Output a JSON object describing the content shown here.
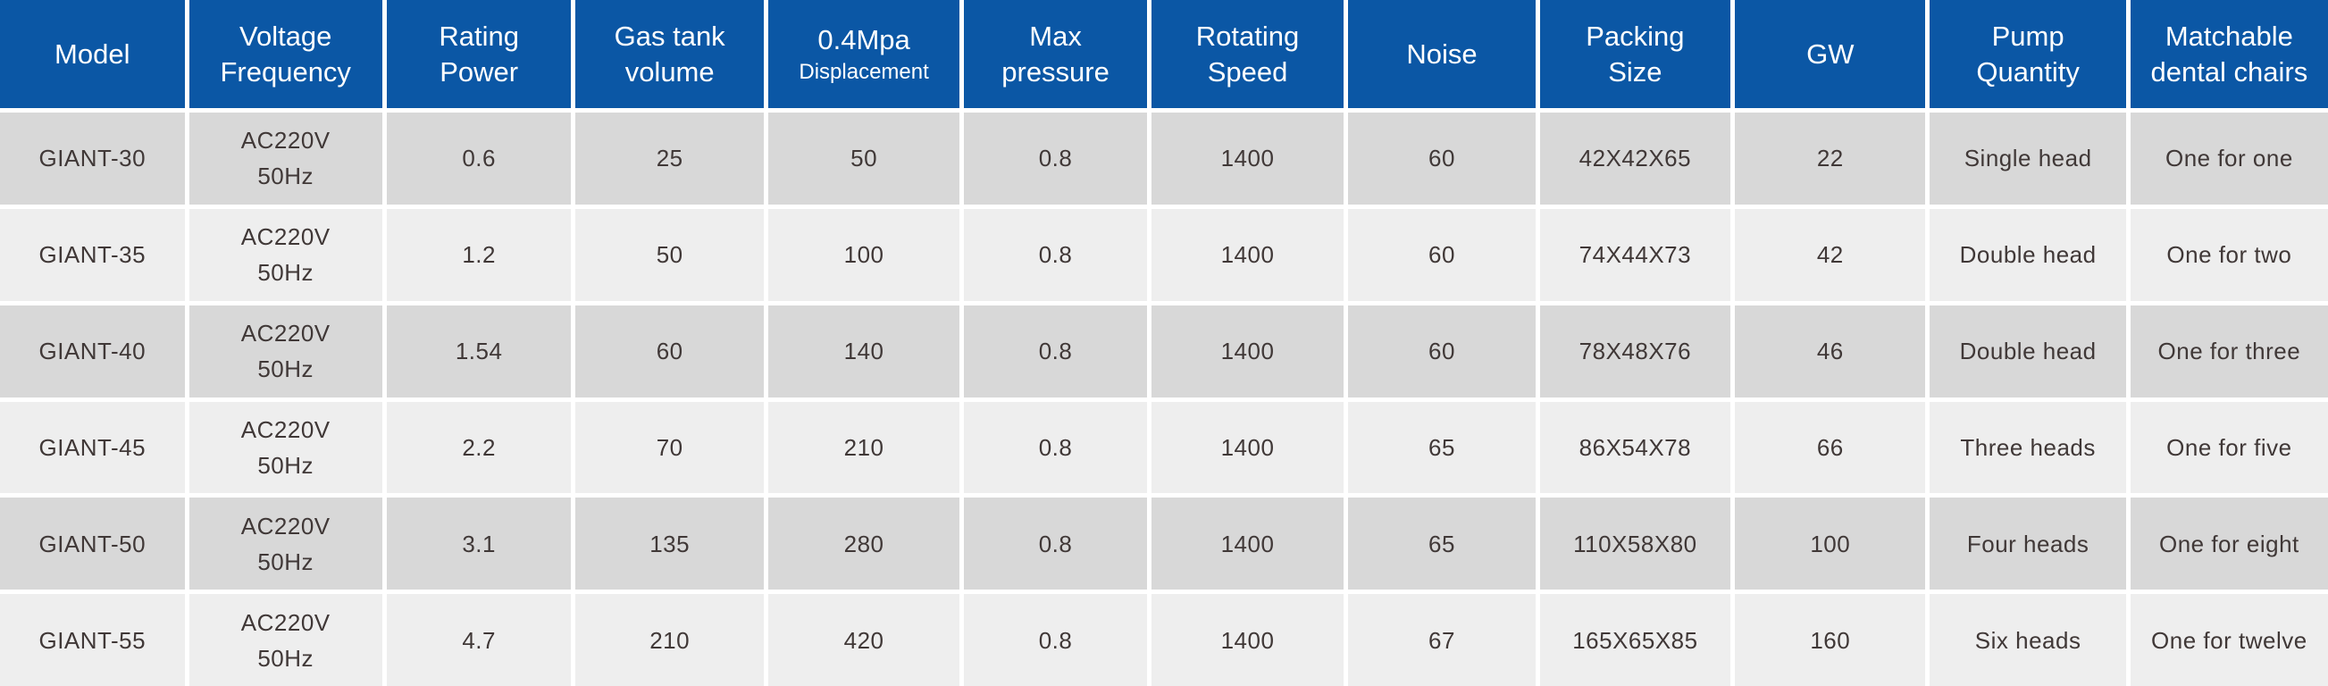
{
  "table": {
    "columns": [
      {
        "id": "model",
        "label": "Model"
      },
      {
        "id": "voltage-frequency",
        "label": "Voltage\nFrequency"
      },
      {
        "id": "rating-power",
        "label": "Rating\nPower"
      },
      {
        "id": "gas-tank-volume",
        "label": "Gas tank\nvolume"
      },
      {
        "id": "displacement",
        "label": "0.4Mpa",
        "sublabel": "Displacement"
      },
      {
        "id": "max-pressure",
        "label": "Max\npressure"
      },
      {
        "id": "rotating-speed",
        "label": "Rotating\nSpeed"
      },
      {
        "id": "noise",
        "label": "Noise"
      },
      {
        "id": "packing-size",
        "label": "Packing\nSize"
      },
      {
        "id": "gw",
        "label": "GW"
      },
      {
        "id": "pump-quantity",
        "label": "Pump\nQuantity"
      },
      {
        "id": "matchable-dental-chairs",
        "label": "Matchable\ndental chairs"
      }
    ],
    "rows": [
      [
        "GIANT-30",
        "AC220V\n50Hz",
        "0.6",
        "25",
        "50",
        "0.8",
        "1400",
        "60",
        "42X42X65",
        "22",
        "Single head",
        "One for one"
      ],
      [
        "GIANT-35",
        "AC220V\n50Hz",
        "1.2",
        "50",
        "100",
        "0.8",
        "1400",
        "60",
        "74X44X73",
        "42",
        "Double head",
        "One for two"
      ],
      [
        "GIANT-40",
        "AC220V\n50Hz",
        "1.54",
        "60",
        "140",
        "0.8",
        "1400",
        "60",
        "78X48X76",
        "46",
        "Double head",
        "One for three"
      ],
      [
        "GIANT-45",
        "AC220V\n50Hz",
        "2.2",
        "70",
        "210",
        "0.8",
        "1400",
        "65",
        "86X54X78",
        "66",
        "Three heads",
        "One for five"
      ],
      [
        "GIANT-50",
        "AC220V\n50Hz",
        "3.1",
        "135",
        "280",
        "0.8",
        "1400",
        "65",
        "110X58X80",
        "100",
        "Four heads",
        "One for eight"
      ],
      [
        "GIANT-55",
        "AC220V\n50Hz",
        "4.7",
        "210",
        "420",
        "0.8",
        "1400",
        "67",
        "165X65X85",
        "160",
        "Six heads",
        "One for twelve"
      ]
    ]
  },
  "colors": {
    "header_bg": "#0b57a5",
    "header_text": "#ffffff",
    "row_dark": "#d8d8d8",
    "row_light": "#eeeeee",
    "divider": "#ffffff",
    "body_text": "#403837"
  }
}
